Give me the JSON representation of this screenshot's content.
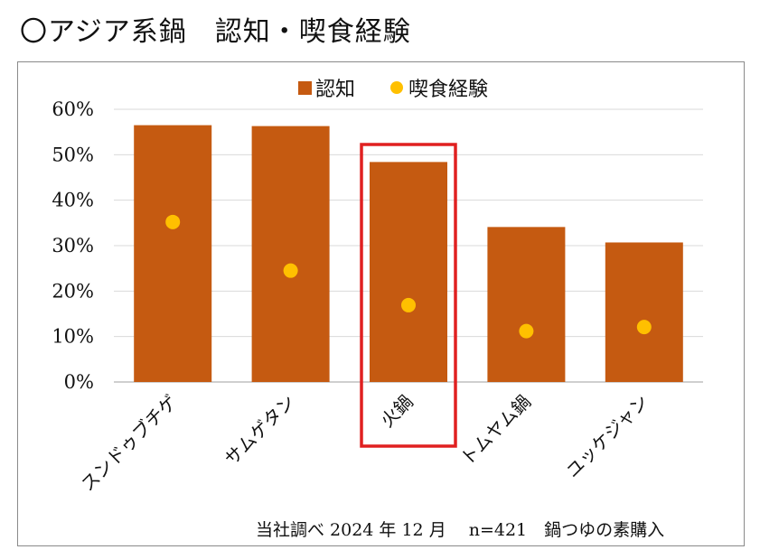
{
  "title": "〇アジア系鍋　認知・喫食経験",
  "footnote": "当社調べ  2024 年 12 月　 n=421　鍋つゆの素購入",
  "colors": {
    "bar": "#C55A11",
    "dot": "#FFC000",
    "highlight": "#E02020",
    "grid": "#d9d9d9",
    "axis": "#bfbfbf"
  },
  "chart_data": {
    "type": "bar",
    "categories": [
      "スンドゥブチゲ",
      "サムゲタン",
      "火鍋",
      "トムヤム鍋",
      "ユッケジャン"
    ],
    "series": [
      {
        "name": "認知",
        "type": "bar",
        "values": [
          56.5,
          56.3,
          48.4,
          34.1,
          30.7
        ]
      },
      {
        "name": "喫食経験",
        "type": "scatter",
        "values": [
          35.2,
          24.5,
          16.9,
          11.2,
          12.1
        ]
      }
    ],
    "ylim": [
      0,
      60
    ],
    "yticks": [
      "0%",
      "10%",
      "20%",
      "30%",
      "40%",
      "50%",
      "60%"
    ],
    "grid": true,
    "legend": "top-center",
    "highlighted_category": "火鍋"
  }
}
